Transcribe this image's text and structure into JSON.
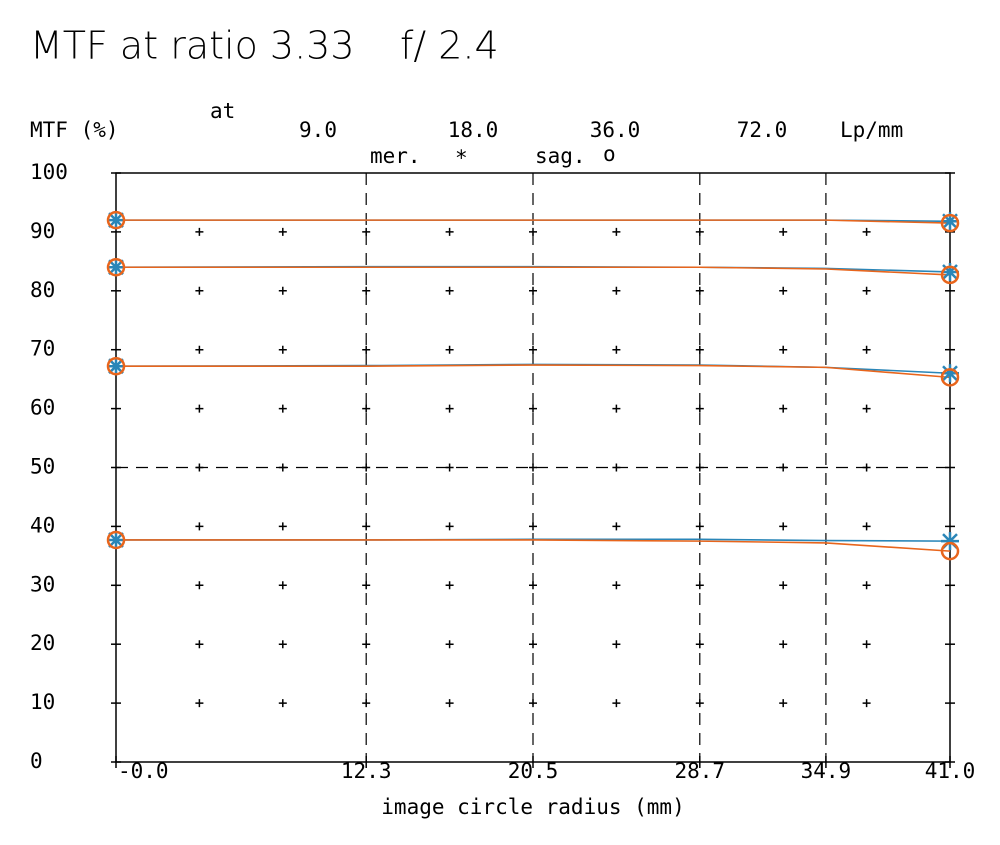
{
  "chart_data": {
    "type": "line",
    "title": "MTF at ratio 3.33",
    "subtitle": "f/ 2.4",
    "y_label": "MTF (%)",
    "frequency_prefix": "at",
    "frequency_unit": "Lp/mm",
    "frequencies": [
      {
        "value": 9,
        "label": "9.0"
      },
      {
        "value": 18,
        "label": "18.0"
      },
      {
        "value": 36,
        "label": "36.0"
      },
      {
        "value": 72,
        "label": "72.0"
      }
    ],
    "x_label": "image circle radius (mm)",
    "x": [
      0,
      12.3,
      20.5,
      28.7,
      34.9,
      41.0
    ],
    "xlim": [
      0,
      41
    ],
    "xticks": [
      {
        "value": 0,
        "label": "-0.0"
      },
      12.3,
      20.5,
      28.7,
      34.9,
      {
        "value": 41,
        "label": "41.0"
      }
    ],
    "ylim": [
      0,
      100
    ],
    "yticks": [
      0,
      10,
      20,
      30,
      40,
      50,
      60,
      70,
      80,
      90,
      100
    ],
    "series": [
      {
        "name": "mer.",
        "symbol": "*",
        "color": "#2a86b8",
        "values": [
          [
            92,
            92,
            92,
            92,
            92,
            91.8
          ],
          [
            84,
            84.1,
            84.1,
            84,
            83.8,
            83.2
          ],
          [
            67.2,
            67.3,
            67.5,
            67.4,
            67,
            66
          ],
          [
            37.7,
            37.7,
            37.8,
            37.8,
            37.6,
            37.5
          ]
        ]
      },
      {
        "name": "sag.",
        "symbol": "o",
        "color": "#e8651c",
        "values": [
          [
            92,
            92,
            92,
            92,
            92,
            91.5
          ],
          [
            84,
            84,
            84,
            84,
            83.7,
            82.7
          ],
          [
            67.2,
            67.2,
            67.4,
            67.3,
            67,
            65.3
          ],
          [
            37.7,
            37.7,
            37.7,
            37.5,
            37.2,
            35.8
          ]
        ]
      }
    ]
  }
}
